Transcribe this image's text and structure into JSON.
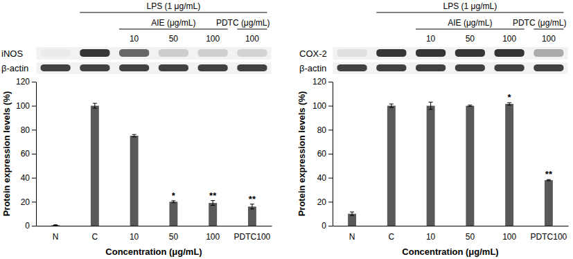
{
  "chart_data": [
    {
      "type": "bar",
      "categories": [
        "N",
        "C",
        "10",
        "50",
        "100",
        "PDTC100"
      ],
      "values": [
        0.5,
        100,
        75,
        20,
        19,
        16
      ],
      "errors": [
        0.3,
        2,
        1,
        0.8,
        2,
        2
      ],
      "significance": [
        null,
        null,
        null,
        "*",
        "**",
        "**"
      ],
      "color": "#595959",
      "ylim": [
        0,
        120
      ],
      "yticks": [
        0,
        20,
        40,
        60,
        80,
        100,
        120
      ],
      "grid": false,
      "x_label": "Concentration (μg/mL)",
      "y_label": "Protein expression levels (%)",
      "blot": {
        "target": "iNOS",
        "control": "β-actin",
        "groups": [
          {
            "label": "LPS (1 μg/mL)",
            "from": 1,
            "to": 5
          },
          {
            "label": "AIE (μg/mL)",
            "from": 2,
            "to": 4
          },
          {
            "label": "PDTC (μg/mL)",
            "from": 5,
            "to": 5
          }
        ],
        "lane_labels": [
          null,
          null,
          "10",
          "50",
          "100",
          "100"
        ]
      }
    },
    {
      "type": "bar",
      "categories": [
        "N",
        "C",
        "10",
        "50",
        "100",
        "PDTC100"
      ],
      "values": [
        10,
        100,
        100,
        100,
        101.5,
        38
      ],
      "errors": [
        1.5,
        1.5,
        3,
        0.5,
        1,
        0.5
      ],
      "significance": [
        null,
        null,
        null,
        null,
        "*",
        "**"
      ],
      "color": "#595959",
      "ylim": [
        0,
        120
      ],
      "yticks": [
        0,
        20,
        40,
        60,
        80,
        100,
        120
      ],
      "grid": false,
      "x_label": "Concentration (μg/mL)",
      "y_label": "Protein expression levels (%)",
      "blot": {
        "target": "COX-2",
        "control": "β-actin",
        "groups": [
          {
            "label": "LPS (1 μg/mL)",
            "from": 1,
            "to": 5
          },
          {
            "label": "AIE (μg/mL)",
            "from": 2,
            "to": 4
          },
          {
            "label": "PDTC (μg/mL)",
            "from": 5,
            "to": 5
          }
        ],
        "lane_labels": [
          null,
          null,
          "10",
          "50",
          "100",
          "100"
        ]
      }
    }
  ]
}
